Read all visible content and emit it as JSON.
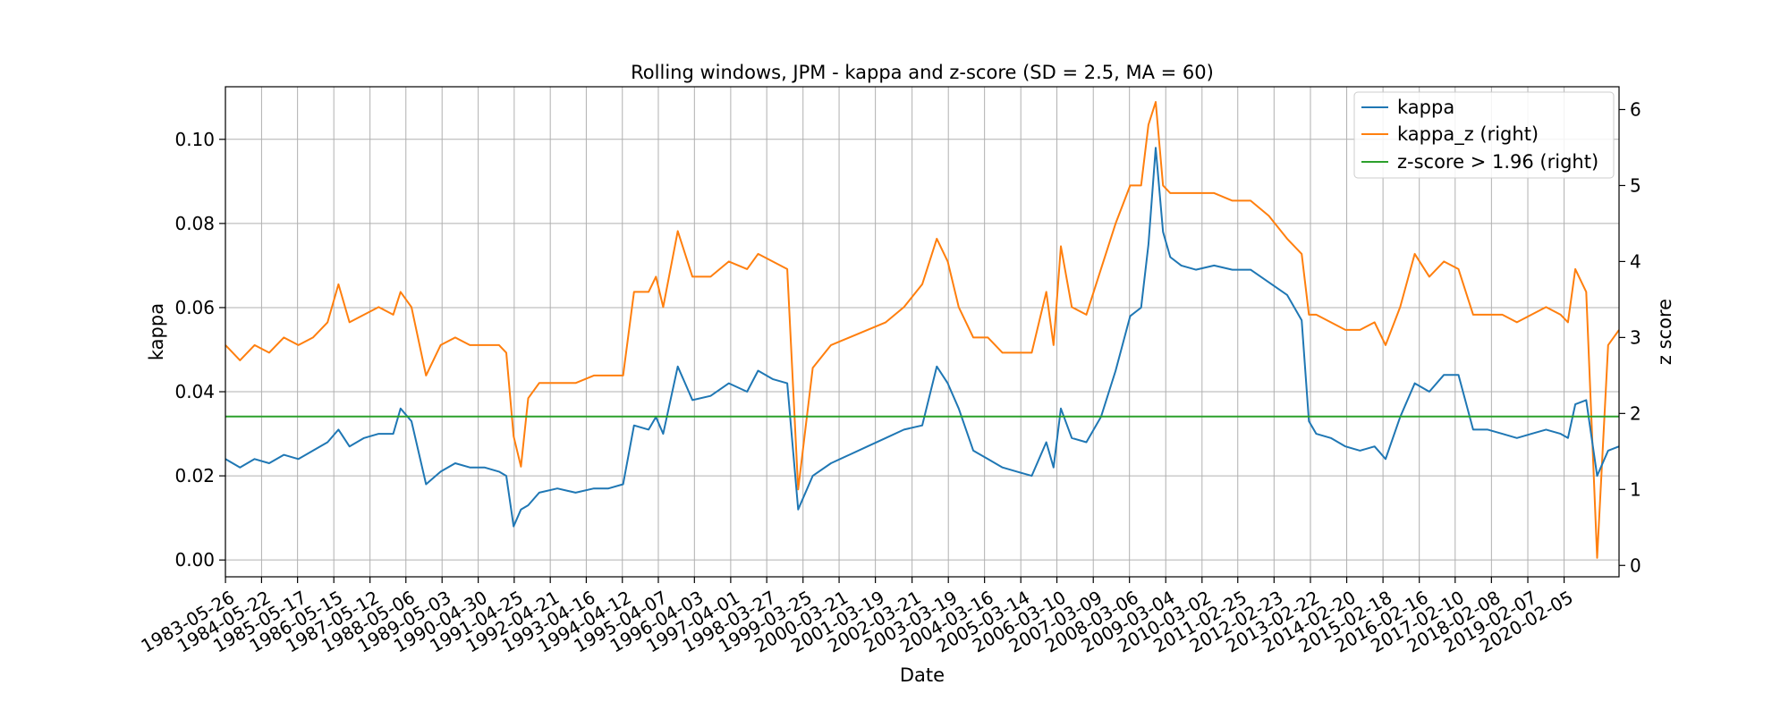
{
  "chart_data": {
    "type": "line",
    "title": "Rolling windows, JPM - kappa and z-score (SD = 2.5, MA = 60)",
    "xlabel": "Date",
    "ylabel_left": "kappa",
    "ylabel_right": "z score",
    "ylim_left": [
      -0.004,
      0.1125
    ],
    "ylim_right": [
      -0.15,
      6.3
    ],
    "yticks_left": [
      "0.00",
      "0.02",
      "0.04",
      "0.06",
      "0.08",
      "0.10"
    ],
    "yticks_right": [
      "0",
      "1",
      "2",
      "3",
      "4",
      "5",
      "6"
    ],
    "x_tick_labels": [
      "1983-05-26",
      "1984-05-22",
      "1985-05-17",
      "1986-05-15",
      "1987-05-12",
      "1988-05-06",
      "1989-05-03",
      "1990-04-30",
      "1991-04-25",
      "1992-04-21",
      "1993-04-16",
      "1994-04-12",
      "1995-04-07",
      "1996-04-03",
      "1997-04-01",
      "1998-03-27",
      "1999-03-25",
      "2000-03-21",
      "2001-03-19",
      "2002-03-21",
      "2003-03-19",
      "2004-03-16",
      "2005-03-14",
      "2006-03-10",
      "2007-03-09",
      "2008-03-06",
      "2009-03-04",
      "2010-03-02",
      "2011-02-25",
      "2012-02-23",
      "2013-02-22",
      "2014-02-20",
      "2015-02-18",
      "2016-02-16",
      "2017-02-10",
      "2018-02-08",
      "2019-02-07",
      "2020-02-05"
    ],
    "grid": true,
    "legend_position": "top-right",
    "x_units": "years",
    "x_range": [
      1983.4,
      2021.6
    ],
    "series": [
      {
        "name": "kappa",
        "axis": "left",
        "color": "#1f77b4",
        "x": [
          1983.4,
          1983.8,
          1984.2,
          1984.6,
          1985.0,
          1985.4,
          1985.8,
          1986.2,
          1986.5,
          1986.8,
          1987.2,
          1987.6,
          1988.0,
          1988.2,
          1988.5,
          1988.9,
          1989.3,
          1989.7,
          1990.1,
          1990.5,
          1990.9,
          1991.1,
          1991.3,
          1991.5,
          1991.7,
          1992.0,
          1992.5,
          1993.0,
          1993.5,
          1993.9,
          1994.3,
          1994.6,
          1995.0,
          1995.2,
          1995.4,
          1995.8,
          1996.2,
          1996.7,
          1997.2,
          1997.7,
          1998.0,
          1998.4,
          1998.8,
          1999.1,
          1999.5,
          2000.0,
          2000.5,
          2001.0,
          2001.5,
          2002.0,
          2002.5,
          2002.9,
          2003.2,
          2003.5,
          2003.9,
          2004.3,
          2004.7,
          2005.1,
          2005.5,
          2005.9,
          2006.1,
          2006.3,
          2006.6,
          2007.0,
          2007.4,
          2007.8,
          2008.2,
          2008.5,
          2008.7,
          2008.9,
          2009.1,
          2009.3,
          2009.6,
          2010.0,
          2010.5,
          2011.0,
          2011.5,
          2012.0,
          2012.5,
          2012.9,
          2013.1,
          2013.3,
          2013.7,
          2014.1,
          2014.5,
          2014.9,
          2015.2,
          2015.6,
          2016.0,
          2016.4,
          2016.8,
          2017.2,
          2017.6,
          2018.0,
          2018.4,
          2018.8,
          2019.2,
          2019.6,
          2020.0,
          2020.2,
          2020.4,
          2020.7,
          2021.0,
          2021.3,
          2021.6
        ],
        "values": [
          0.024,
          0.022,
          0.024,
          0.023,
          0.025,
          0.024,
          0.026,
          0.028,
          0.031,
          0.027,
          0.029,
          0.03,
          0.03,
          0.036,
          0.033,
          0.018,
          0.021,
          0.023,
          0.022,
          0.022,
          0.021,
          0.02,
          0.008,
          0.012,
          0.013,
          0.016,
          0.017,
          0.016,
          0.017,
          0.017,
          0.018,
          0.032,
          0.031,
          0.034,
          0.03,
          0.046,
          0.038,
          0.039,
          0.042,
          0.04,
          0.045,
          0.043,
          0.042,
          0.012,
          0.02,
          0.023,
          0.025,
          0.027,
          0.029,
          0.031,
          0.032,
          0.046,
          0.042,
          0.036,
          0.026,
          0.024,
          0.022,
          0.021,
          0.02,
          0.028,
          0.022,
          0.036,
          0.029,
          0.028,
          0.034,
          0.045,
          0.058,
          0.06,
          0.075,
          0.098,
          0.078,
          0.072,
          0.07,
          0.069,
          0.07,
          0.069,
          0.069,
          0.066,
          0.063,
          0.057,
          0.033,
          0.03,
          0.029,
          0.027,
          0.026,
          0.027,
          0.024,
          0.034,
          0.042,
          0.04,
          0.044,
          0.044,
          0.031,
          0.031,
          0.03,
          0.029,
          0.03,
          0.031,
          0.03,
          0.029,
          0.037,
          0.038,
          0.02,
          0.026,
          0.027
        ]
      },
      {
        "name": "kappa_z (right)",
        "axis": "right",
        "color": "#ff7f0e",
        "x": [
          1983.4,
          1983.8,
          1984.2,
          1984.6,
          1985.0,
          1985.4,
          1985.8,
          1986.2,
          1986.5,
          1986.8,
          1987.2,
          1987.6,
          1988.0,
          1988.2,
          1988.5,
          1988.9,
          1989.3,
          1989.7,
          1990.1,
          1990.5,
          1990.9,
          1991.1,
          1991.3,
          1991.5,
          1991.7,
          1992.0,
          1992.5,
          1993.0,
          1993.5,
          1993.9,
          1994.3,
          1994.6,
          1995.0,
          1995.2,
          1995.4,
          1995.8,
          1996.2,
          1996.7,
          1997.2,
          1997.7,
          1998.0,
          1998.4,
          1998.8,
          1999.1,
          1999.5,
          2000.0,
          2000.5,
          2001.0,
          2001.5,
          2002.0,
          2002.5,
          2002.9,
          2003.2,
          2003.5,
          2003.9,
          2004.3,
          2004.7,
          2005.1,
          2005.5,
          2005.9,
          2006.1,
          2006.3,
          2006.6,
          2007.0,
          2007.4,
          2007.8,
          2008.2,
          2008.5,
          2008.7,
          2008.9,
          2009.1,
          2009.3,
          2009.6,
          2010.0,
          2010.5,
          2011.0,
          2011.5,
          2012.0,
          2012.5,
          2012.9,
          2013.1,
          2013.3,
          2013.7,
          2014.1,
          2014.5,
          2014.9,
          2015.2,
          2015.6,
          2016.0,
          2016.4,
          2016.8,
          2017.2,
          2017.6,
          2018.0,
          2018.4,
          2018.8,
          2019.2,
          2019.6,
          2020.0,
          2020.2,
          2020.4,
          2020.7,
          2021.0,
          2021.3,
          2021.6
        ],
        "values": [
          2.9,
          2.7,
          2.9,
          2.8,
          3.0,
          2.9,
          3.0,
          3.2,
          3.7,
          3.2,
          3.3,
          3.4,
          3.3,
          3.6,
          3.4,
          2.5,
          2.9,
          3.0,
          2.9,
          2.9,
          2.9,
          2.8,
          1.7,
          1.3,
          2.2,
          2.4,
          2.4,
          2.4,
          2.5,
          2.5,
          2.5,
          3.6,
          3.6,
          3.8,
          3.4,
          4.4,
          3.8,
          3.8,
          4.0,
          3.9,
          4.1,
          4.0,
          3.9,
          1.0,
          2.6,
          2.9,
          3.0,
          3.1,
          3.2,
          3.4,
          3.7,
          4.3,
          4.0,
          3.4,
          3.0,
          3.0,
          2.8,
          2.8,
          2.8,
          3.6,
          2.9,
          4.2,
          3.4,
          3.3,
          3.9,
          4.5,
          5.0,
          5.0,
          5.8,
          6.1,
          5.0,
          4.9,
          4.9,
          4.9,
          4.9,
          4.8,
          4.8,
          4.6,
          4.3,
          4.1,
          3.3,
          3.3,
          3.2,
          3.1,
          3.1,
          3.2,
          2.9,
          3.4,
          4.1,
          3.8,
          4.0,
          3.9,
          3.3,
          3.3,
          3.3,
          3.2,
          3.3,
          3.4,
          3.3,
          3.2,
          3.9,
          3.6,
          0.1,
          2.9,
          3.1
        ]
      },
      {
        "name": "z-score > 1.96 (right)",
        "axis": "right",
        "color": "#2ca02c",
        "x": [
          1983.4,
          2021.6
        ],
        "values": [
          1.96,
          1.96
        ]
      }
    ]
  }
}
